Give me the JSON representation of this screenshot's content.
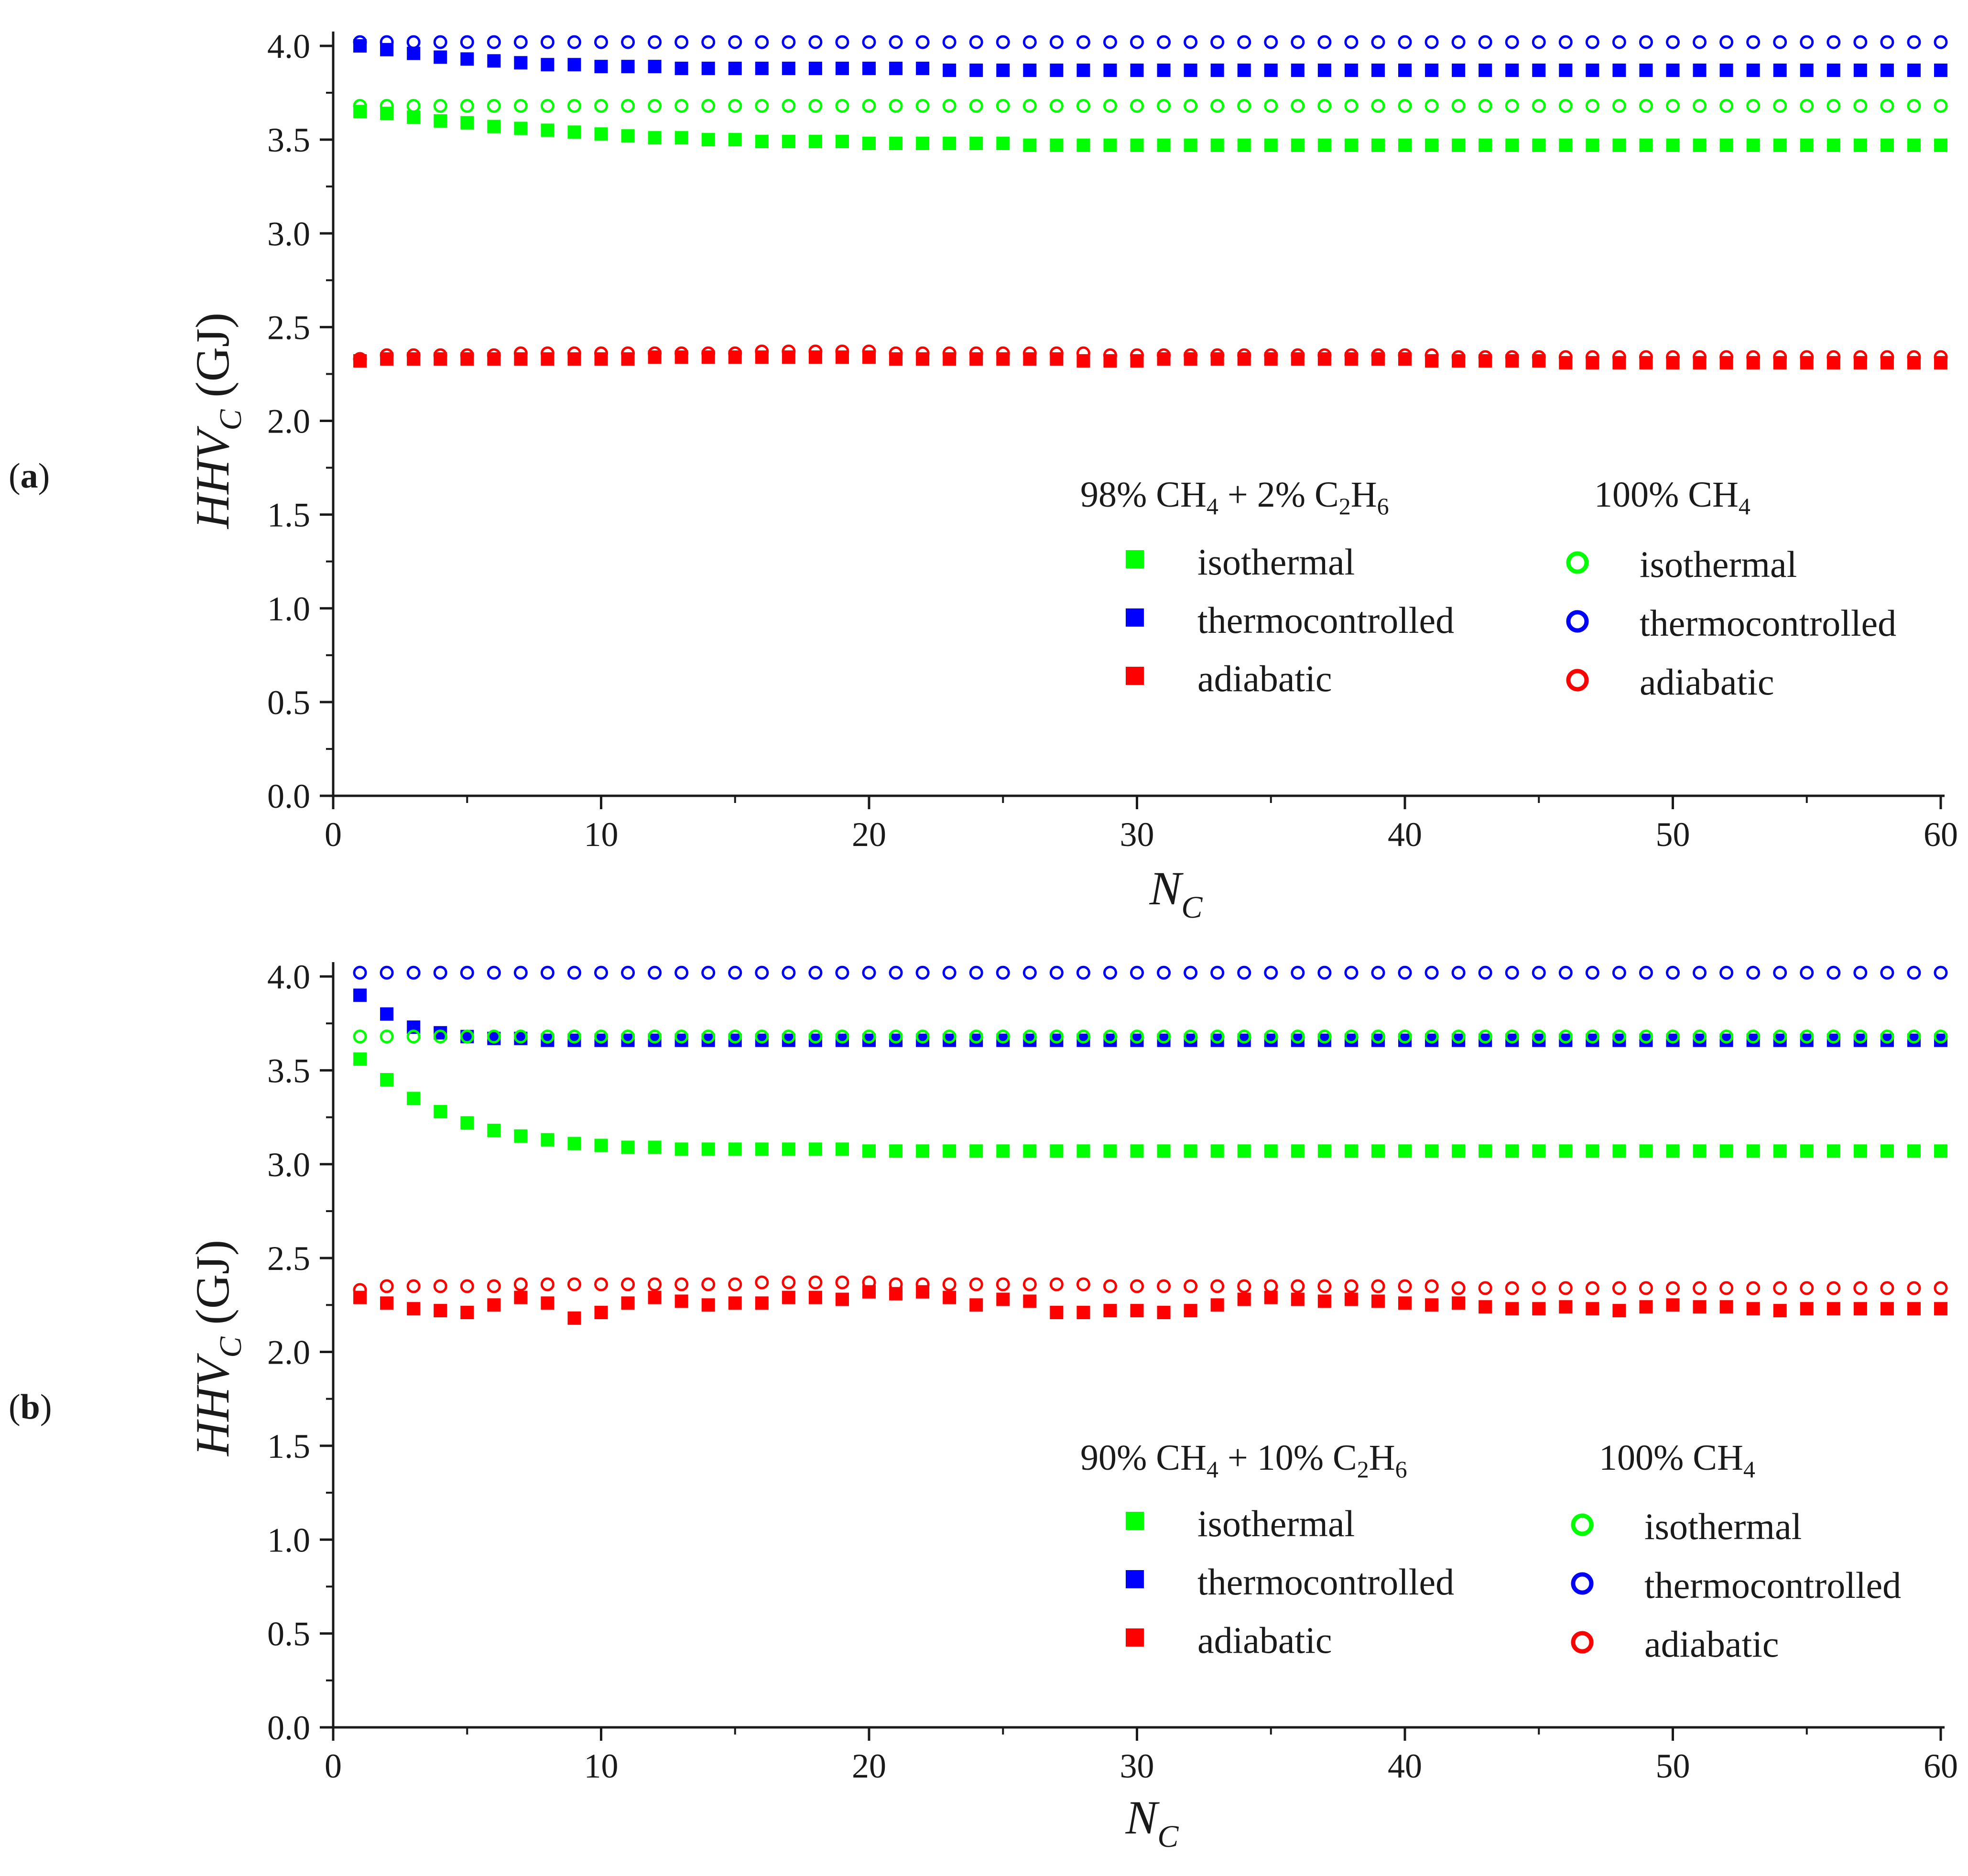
{
  "colors": {
    "isothermal": "#00ff00",
    "thermocontrolled": "#0000ff",
    "adiabatic": "#ff0000",
    "axis": "#1a1a1a"
  },
  "chart_data": [
    {
      "type": "scatter",
      "panel_label": {
        "open": "(",
        "letter": "a",
        "close": ")"
      },
      "xlabel": {
        "main": "N",
        "sub": "C"
      },
      "ylabel": {
        "main": "HHV",
        "sub": "C",
        "unit": " (GJ)"
      },
      "xlim": [
        0,
        60
      ],
      "ylim": [
        0.0,
        4.0
      ],
      "xticks": [
        "0",
        "10",
        "20",
        "30",
        "40",
        "50",
        "60"
      ],
      "yticks": [
        "0.0",
        "0.5",
        "1.0",
        "1.5",
        "2.0",
        "2.5",
        "3.0",
        "3.5",
        "4.0"
      ],
      "grid": false,
      "legend": {
        "placement": "center-right",
        "mixture_title": {
          "prefix": "98% CH",
          "s1": "4",
          "middle": " + 2% C",
          "s2": "2",
          "h": "H",
          "s3": "6"
        },
        "pure_title": {
          "prefix": "100% CH",
          "s1": "4"
        },
        "entries": [
          "isothermal",
          "thermocontrolled",
          "adiabatic"
        ]
      },
      "x": [
        1,
        2,
        3,
        4,
        5,
        6,
        7,
        8,
        9,
        10,
        11,
        12,
        13,
        14,
        15,
        16,
        17,
        18,
        19,
        20,
        21,
        22,
        23,
        24,
        25,
        26,
        27,
        28,
        29,
        30,
        31,
        32,
        33,
        34,
        35,
        36,
        37,
        38,
        39,
        40,
        41,
        42,
        43,
        44,
        45,
        46,
        47,
        48,
        49,
        50,
        51,
        52,
        53,
        54,
        55,
        56,
        57,
        58,
        59,
        60
      ],
      "series": [
        {
          "name": "isothermal",
          "marker": "filled-square",
          "color": "#00ff00",
          "values": [
            3.65,
            3.64,
            3.62,
            3.6,
            3.59,
            3.57,
            3.56,
            3.55,
            3.54,
            3.53,
            3.52,
            3.51,
            3.51,
            3.5,
            3.5,
            3.49,
            3.49,
            3.49,
            3.49,
            3.48,
            3.48,
            3.48,
            3.48,
            3.48,
            3.48,
            3.47,
            3.47,
            3.47,
            3.47,
            3.47,
            3.47,
            3.47,
            3.47,
            3.47,
            3.47,
            3.47,
            3.47,
            3.47,
            3.47,
            3.47,
            3.47,
            3.47,
            3.47,
            3.47,
            3.47,
            3.47,
            3.47,
            3.47,
            3.47,
            3.47,
            3.47,
            3.47,
            3.47,
            3.47,
            3.47,
            3.47,
            3.47,
            3.47,
            3.47,
            3.47
          ]
        },
        {
          "name": "thermocontrolled",
          "marker": "filled-square",
          "color": "#0000ff",
          "values": [
            4.0,
            3.98,
            3.96,
            3.94,
            3.93,
            3.92,
            3.91,
            3.9,
            3.9,
            3.89,
            3.89,
            3.89,
            3.88,
            3.88,
            3.88,
            3.88,
            3.88,
            3.88,
            3.88,
            3.88,
            3.88,
            3.88,
            3.87,
            3.87,
            3.87,
            3.87,
            3.87,
            3.87,
            3.87,
            3.87,
            3.87,
            3.87,
            3.87,
            3.87,
            3.87,
            3.87,
            3.87,
            3.87,
            3.87,
            3.87,
            3.87,
            3.87,
            3.87,
            3.87,
            3.87,
            3.87,
            3.87,
            3.87,
            3.87,
            3.87,
            3.87,
            3.87,
            3.87,
            3.87,
            3.87,
            3.87,
            3.87,
            3.87,
            3.87,
            3.87
          ]
        },
        {
          "name": "adiabatic",
          "marker": "filled-square",
          "color": "#ff0000",
          "values": [
            2.32,
            2.33,
            2.33,
            2.33,
            2.33,
            2.33,
            2.33,
            2.33,
            2.33,
            2.33,
            2.33,
            2.34,
            2.34,
            2.34,
            2.34,
            2.34,
            2.34,
            2.34,
            2.34,
            2.34,
            2.33,
            2.33,
            2.33,
            2.33,
            2.33,
            2.33,
            2.33,
            2.32,
            2.32,
            2.32,
            2.33,
            2.33,
            2.33,
            2.33,
            2.33,
            2.33,
            2.33,
            2.33,
            2.33,
            2.33,
            2.32,
            2.32,
            2.32,
            2.32,
            2.32,
            2.31,
            2.31,
            2.31,
            2.31,
            2.31,
            2.31,
            2.31,
            2.31,
            2.31,
            2.31,
            2.31,
            2.31,
            2.31,
            2.31,
            2.31
          ]
        },
        {
          "name": "isothermal (100% CH4)",
          "marker": "open-circle",
          "color": "#00ff00",
          "values": [
            3.68,
            3.68,
            3.68,
            3.68,
            3.68,
            3.68,
            3.68,
            3.68,
            3.68,
            3.68,
            3.68,
            3.68,
            3.68,
            3.68,
            3.68,
            3.68,
            3.68,
            3.68,
            3.68,
            3.68,
            3.68,
            3.68,
            3.68,
            3.68,
            3.68,
            3.68,
            3.68,
            3.68,
            3.68,
            3.68,
            3.68,
            3.68,
            3.68,
            3.68,
            3.68,
            3.68,
            3.68,
            3.68,
            3.68,
            3.68,
            3.68,
            3.68,
            3.68,
            3.68,
            3.68,
            3.68,
            3.68,
            3.68,
            3.68,
            3.68,
            3.68,
            3.68,
            3.68,
            3.68,
            3.68,
            3.68,
            3.68,
            3.68,
            3.68,
            3.68
          ]
        },
        {
          "name": "thermocontrolled (100% CH4)",
          "marker": "open-circle",
          "color": "#0000ff",
          "values": [
            4.02,
            4.02,
            4.02,
            4.02,
            4.02,
            4.02,
            4.02,
            4.02,
            4.02,
            4.02,
            4.02,
            4.02,
            4.02,
            4.02,
            4.02,
            4.02,
            4.02,
            4.02,
            4.02,
            4.02,
            4.02,
            4.02,
            4.02,
            4.02,
            4.02,
            4.02,
            4.02,
            4.02,
            4.02,
            4.02,
            4.02,
            4.02,
            4.02,
            4.02,
            4.02,
            4.02,
            4.02,
            4.02,
            4.02,
            4.02,
            4.02,
            4.02,
            4.02,
            4.02,
            4.02,
            4.02,
            4.02,
            4.02,
            4.02,
            4.02,
            4.02,
            4.02,
            4.02,
            4.02,
            4.02,
            4.02,
            4.02,
            4.02,
            4.02,
            4.02
          ]
        },
        {
          "name": "adiabatic (100% CH4)",
          "marker": "open-circle",
          "color": "#ff0000",
          "values": [
            2.33,
            2.35,
            2.35,
            2.35,
            2.35,
            2.35,
            2.36,
            2.36,
            2.36,
            2.36,
            2.36,
            2.36,
            2.36,
            2.36,
            2.36,
            2.37,
            2.37,
            2.37,
            2.37,
            2.37,
            2.36,
            2.36,
            2.36,
            2.36,
            2.36,
            2.36,
            2.36,
            2.36,
            2.35,
            2.35,
            2.35,
            2.35,
            2.35,
            2.35,
            2.35,
            2.35,
            2.35,
            2.35,
            2.35,
            2.35,
            2.35,
            2.34,
            2.34,
            2.34,
            2.34,
            2.34,
            2.34,
            2.34,
            2.34,
            2.34,
            2.34,
            2.34,
            2.34,
            2.34,
            2.34,
            2.34,
            2.34,
            2.34,
            2.34,
            2.34
          ]
        }
      ]
    },
    {
      "type": "scatter",
      "panel_label": {
        "open": "(",
        "letter": "b",
        "close": ")"
      },
      "xlabel": {
        "main": "N",
        "sub": "C"
      },
      "ylabel": {
        "main": "HHV",
        "sub": "C",
        "unit": " (GJ)"
      },
      "xlim": [
        0,
        60
      ],
      "ylim": [
        0.0,
        4.0
      ],
      "xticks": [
        "0",
        "10",
        "20",
        "30",
        "40",
        "50",
        "60"
      ],
      "yticks": [
        "0.0",
        "0.5",
        "1.0",
        "1.5",
        "2.0",
        "2.5",
        "3.0",
        "3.5",
        "4.0"
      ],
      "grid": false,
      "legend": {
        "placement": "center-right",
        "mixture_title": {
          "prefix": "90% CH",
          "s1": "4",
          "middle": " + 10% C",
          "s2": "2",
          "h": "H",
          "s3": "6"
        },
        "pure_title": {
          "prefix": "100% CH",
          "s1": "4"
        },
        "entries": [
          "isothermal",
          "thermocontrolled",
          "adiabatic"
        ]
      },
      "x": [
        1,
        2,
        3,
        4,
        5,
        6,
        7,
        8,
        9,
        10,
        11,
        12,
        13,
        14,
        15,
        16,
        17,
        18,
        19,
        20,
        21,
        22,
        23,
        24,
        25,
        26,
        27,
        28,
        29,
        30,
        31,
        32,
        33,
        34,
        35,
        36,
        37,
        38,
        39,
        40,
        41,
        42,
        43,
        44,
        45,
        46,
        47,
        48,
        49,
        50,
        51,
        52,
        53,
        54,
        55,
        56,
        57,
        58,
        59,
        60
      ],
      "series": [
        {
          "name": "isothermal",
          "marker": "filled-square",
          "color": "#00ff00",
          "values": [
            3.56,
            3.45,
            3.35,
            3.28,
            3.22,
            3.18,
            3.15,
            3.13,
            3.11,
            3.1,
            3.09,
            3.09,
            3.08,
            3.08,
            3.08,
            3.08,
            3.08,
            3.08,
            3.08,
            3.07,
            3.07,
            3.07,
            3.07,
            3.07,
            3.07,
            3.07,
            3.07,
            3.07,
            3.07,
            3.07,
            3.07,
            3.07,
            3.07,
            3.07,
            3.07,
            3.07,
            3.07,
            3.07,
            3.07,
            3.07,
            3.07,
            3.07,
            3.07,
            3.07,
            3.07,
            3.07,
            3.07,
            3.07,
            3.07,
            3.07,
            3.07,
            3.07,
            3.07,
            3.07,
            3.07,
            3.07,
            3.07,
            3.07,
            3.07,
            3.07
          ]
        },
        {
          "name": "thermocontrolled",
          "marker": "filled-square",
          "color": "#0000ff",
          "values": [
            3.9,
            3.8,
            3.73,
            3.7,
            3.68,
            3.67,
            3.67,
            3.66,
            3.66,
            3.66,
            3.66,
            3.66,
            3.66,
            3.66,
            3.66,
            3.66,
            3.66,
            3.66,
            3.66,
            3.66,
            3.66,
            3.66,
            3.66,
            3.66,
            3.66,
            3.66,
            3.66,
            3.66,
            3.66,
            3.66,
            3.66,
            3.66,
            3.66,
            3.66,
            3.66,
            3.66,
            3.66,
            3.66,
            3.66,
            3.66,
            3.66,
            3.66,
            3.66,
            3.66,
            3.66,
            3.66,
            3.66,
            3.66,
            3.66,
            3.66,
            3.66,
            3.66,
            3.66,
            3.66,
            3.66,
            3.66,
            3.66,
            3.66,
            3.66,
            3.66
          ]
        },
        {
          "name": "adiabatic",
          "marker": "filled-square",
          "color": "#ff0000",
          "values": [
            2.29,
            2.26,
            2.23,
            2.22,
            2.21,
            2.25,
            2.29,
            2.26,
            2.18,
            2.21,
            2.26,
            2.29,
            2.27,
            2.25,
            2.26,
            2.26,
            2.29,
            2.29,
            2.28,
            2.32,
            2.31,
            2.32,
            2.29,
            2.25,
            2.28,
            2.27,
            2.21,
            2.21,
            2.22,
            2.22,
            2.21,
            2.22,
            2.25,
            2.28,
            2.29,
            2.28,
            2.27,
            2.28,
            2.27,
            2.26,
            2.25,
            2.26,
            2.24,
            2.23,
            2.23,
            2.24,
            2.23,
            2.22,
            2.24,
            2.25,
            2.24,
            2.24,
            2.23,
            2.22,
            2.23,
            2.23,
            2.23,
            2.23,
            2.23,
            2.23
          ]
        },
        {
          "name": "isothermal (100% CH4)",
          "marker": "open-circle",
          "color": "#00ff00",
          "values": [
            3.68,
            3.68,
            3.68,
            3.68,
            3.68,
            3.68,
            3.68,
            3.68,
            3.68,
            3.68,
            3.68,
            3.68,
            3.68,
            3.68,
            3.68,
            3.68,
            3.68,
            3.68,
            3.68,
            3.68,
            3.68,
            3.68,
            3.68,
            3.68,
            3.68,
            3.68,
            3.68,
            3.68,
            3.68,
            3.68,
            3.68,
            3.68,
            3.68,
            3.68,
            3.68,
            3.68,
            3.68,
            3.68,
            3.68,
            3.68,
            3.68,
            3.68,
            3.68,
            3.68,
            3.68,
            3.68,
            3.68,
            3.68,
            3.68,
            3.68,
            3.68,
            3.68,
            3.68,
            3.68,
            3.68,
            3.68,
            3.68,
            3.68,
            3.68,
            3.68
          ]
        },
        {
          "name": "thermocontrolled (100% CH4)",
          "marker": "open-circle",
          "color": "#0000ff",
          "values": [
            4.02,
            4.02,
            4.02,
            4.02,
            4.02,
            4.02,
            4.02,
            4.02,
            4.02,
            4.02,
            4.02,
            4.02,
            4.02,
            4.02,
            4.02,
            4.02,
            4.02,
            4.02,
            4.02,
            4.02,
            4.02,
            4.02,
            4.02,
            4.02,
            4.02,
            4.02,
            4.02,
            4.02,
            4.02,
            4.02,
            4.02,
            4.02,
            4.02,
            4.02,
            4.02,
            4.02,
            4.02,
            4.02,
            4.02,
            4.02,
            4.02,
            4.02,
            4.02,
            4.02,
            4.02,
            4.02,
            4.02,
            4.02,
            4.02,
            4.02,
            4.02,
            4.02,
            4.02,
            4.02,
            4.02,
            4.02,
            4.02,
            4.02,
            4.02,
            4.02
          ]
        },
        {
          "name": "adiabatic (100% CH4)",
          "marker": "open-circle",
          "color": "#ff0000",
          "values": [
            2.33,
            2.35,
            2.35,
            2.35,
            2.35,
            2.35,
            2.36,
            2.36,
            2.36,
            2.36,
            2.36,
            2.36,
            2.36,
            2.36,
            2.36,
            2.37,
            2.37,
            2.37,
            2.37,
            2.37,
            2.36,
            2.36,
            2.36,
            2.36,
            2.36,
            2.36,
            2.36,
            2.36,
            2.35,
            2.35,
            2.35,
            2.35,
            2.35,
            2.35,
            2.35,
            2.35,
            2.35,
            2.35,
            2.35,
            2.35,
            2.35,
            2.34,
            2.34,
            2.34,
            2.34,
            2.34,
            2.34,
            2.34,
            2.34,
            2.34,
            2.34,
            2.34,
            2.34,
            2.34,
            2.34,
            2.34,
            2.34,
            2.34,
            2.34,
            2.34
          ]
        }
      ]
    }
  ]
}
